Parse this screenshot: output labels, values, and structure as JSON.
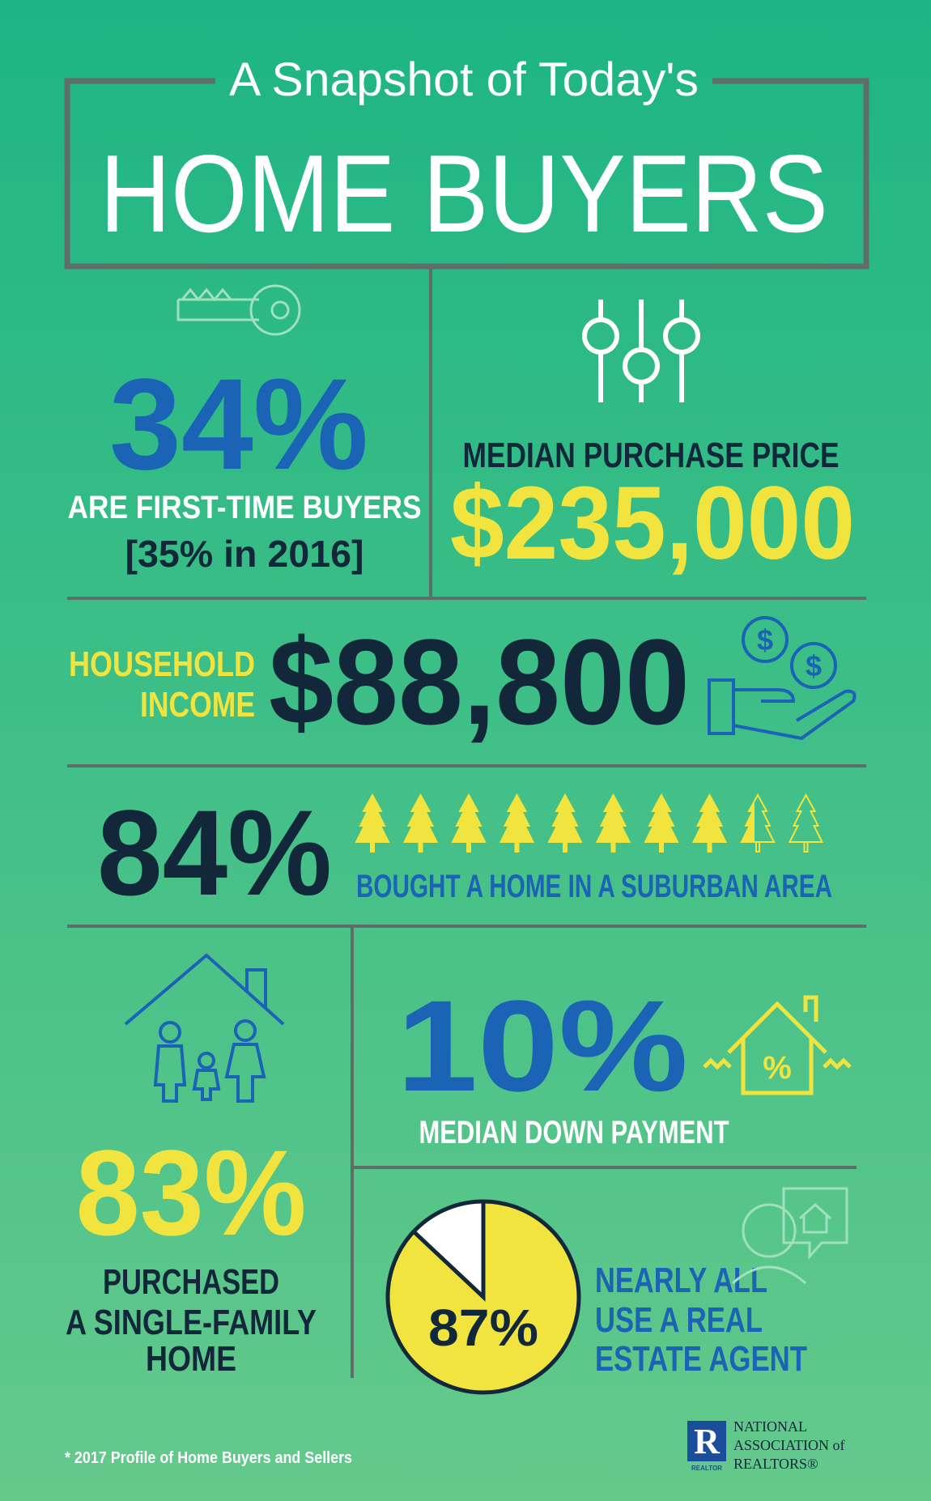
{
  "header": {
    "kicker": "A Snapshot of Today's",
    "title": "HOME BUYERS"
  },
  "first_time": {
    "label": "34%",
    "caption": "ARE FIRST-TIME BUYERS",
    "comparison": "[35% in 2016]"
  },
  "price": {
    "caption": "MEDIAN PURCHASE PRICE",
    "label": "$235,000"
  },
  "income": {
    "caption_lines": [
      "HOUSEHOLD",
      "INCOME"
    ],
    "label": "$88,800",
    "icon_label": "$"
  },
  "suburban": {
    "value": 84,
    "label": "84%",
    "caption": "BOUGHT A HOME IN A SUBURBAN AREA"
  },
  "single_family": {
    "label": "83%",
    "caption_lines": [
      "PURCHASED",
      "A SINGLE-FAMILY",
      "HOME"
    ]
  },
  "down_payment": {
    "label": "10%",
    "caption": "MEDIAN DOWN PAYMENT",
    "icon_label": "%"
  },
  "agent": {
    "value": 87,
    "label": "87%",
    "caption_lines": [
      "NEARLY ALL",
      "USE A REAL",
      "ESTATE AGENT"
    ]
  },
  "footer": {
    "source": "* 2017 Profile of Home Buyers and Sellers",
    "logo": {
      "mark": "R",
      "badge": "REALTOR",
      "lines": [
        "NATIONAL",
        "ASSOCIATION of",
        "REALTORS®"
      ]
    }
  }
}
